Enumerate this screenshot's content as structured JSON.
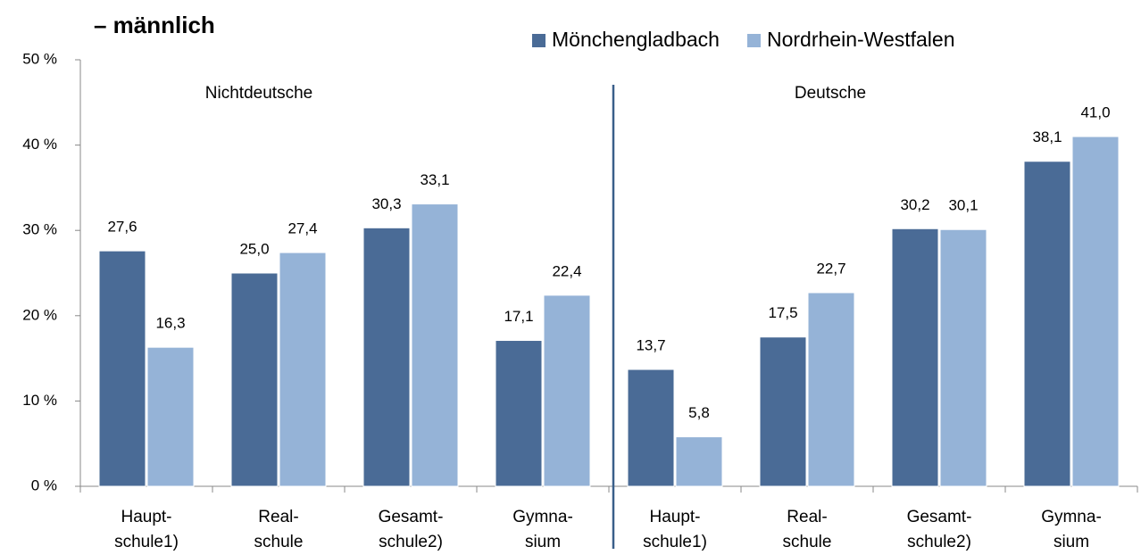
{
  "chart_data": {
    "type": "bar",
    "title": "– männlich",
    "annotations": [
      "Nichtdeutsche",
      "Deutsche"
    ],
    "categories": [
      "Haupt-\nschule1)",
      "Real-\nschule",
      "Gesamt-\nschule2)",
      "Gymna-\nsium",
      "Haupt-\nschule1)",
      "Real-\nschule",
      "Gesamt-\nschule2)",
      "Gymna-\nsium"
    ],
    "series": [
      {
        "name": "Mönchengladbach",
        "color": "#4a6b96",
        "values": [
          27.6,
          25.0,
          30.3,
          17.1,
          13.7,
          17.5,
          30.2,
          38.1
        ],
        "value_labels": [
          "27,6",
          "25,0",
          "30,3",
          "17,1",
          "13,7",
          "17,5",
          "30,2",
          "38,1"
        ]
      },
      {
        "name": "Nordrhein-Westfalen",
        "color": "#95b3d7",
        "values": [
          16.3,
          27.4,
          33.1,
          22.4,
          5.8,
          22.7,
          30.1,
          41.0
        ],
        "value_labels": [
          "16,3",
          "27,4",
          "33,1",
          "22,4",
          "5,8",
          "22,7",
          "30,1",
          "41,0"
        ]
      }
    ],
    "ylim": [
      0,
      50
    ],
    "yticks": [
      {
        "value": 0,
        "label": "0 %"
      },
      {
        "value": 10,
        "label": "10 %"
      },
      {
        "value": 20,
        "label": "20 %"
      },
      {
        "value": 30,
        "label": "30 %"
      },
      {
        "value": 40,
        "label": "40 %"
      },
      {
        "value": 50,
        "label": "50 %"
      }
    ],
    "grid": false,
    "legend": "top"
  }
}
